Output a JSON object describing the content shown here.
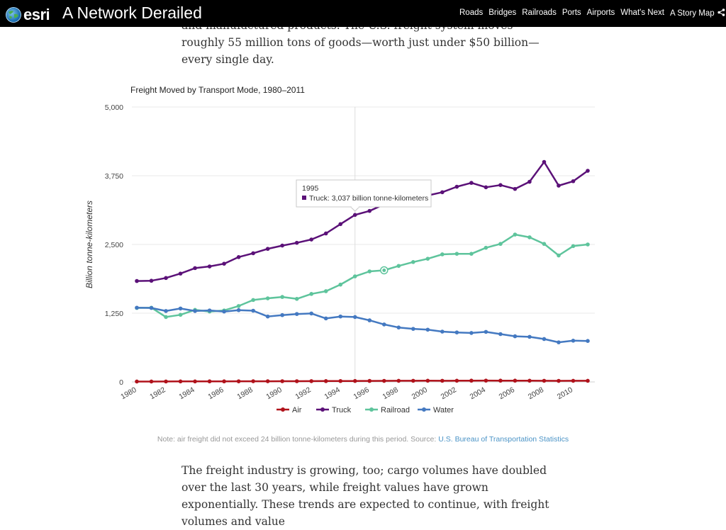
{
  "header": {
    "logo_text": "esri",
    "title": "A Network Derailed",
    "nav_items": [
      "Roads",
      "Bridges",
      "Railroads",
      "Ports",
      "Airports",
      "What's Next"
    ],
    "story_map_label": "A Story Map"
  },
  "intro_text": "and manufactured products. The U.S. freight system moves roughly 55 million tons of goods—worth just under $50 billion—every single day.",
  "outro_text": "The freight industry is growing, too; cargo volumes have doubled over the last 30 years, while freight values have grown exponentially. These trends are expected to continue, with freight volumes and value",
  "note": {
    "text": "Note: air freight did not exceed 24 billion tonne-kilometers during this period. Source: ",
    "link_text": "U.S. Bureau of Transportation Statistics"
  },
  "chart_data": {
    "type": "line",
    "title": "Freight Moved by Transport Mode, 1980–2011",
    "xlabel": "",
    "ylabel": "Billion tonne-kilometers",
    "ylim": [
      0,
      5000
    ],
    "yticks": [
      "0",
      "1,250",
      "2,500",
      "3,750",
      "5,000"
    ],
    "xticks": [
      1980,
      1982,
      1984,
      1986,
      1988,
      1990,
      1992,
      1994,
      1996,
      1998,
      2000,
      2002,
      2004,
      2006,
      2008,
      2010
    ],
    "x": [
      1980,
      1981,
      1982,
      1983,
      1984,
      1985,
      1986,
      1987,
      1988,
      1989,
      1990,
      1991,
      1992,
      1993,
      1994,
      1995,
      1996,
      1997,
      1998,
      1999,
      2000,
      2001,
      2002,
      2003,
      2004,
      2005,
      2006,
      2007,
      2008,
      2009,
      2010,
      2011
    ],
    "series": [
      {
        "name": "Air",
        "color": "#b0121b",
        "values": [
          7,
          7,
          8,
          9,
          9,
          10,
          10,
          11,
          12,
          12,
          13,
          13,
          14,
          15,
          16,
          17,
          18,
          19,
          20,
          21,
          22,
          21,
          22,
          23,
          24,
          23,
          23,
          22,
          21,
          19,
          20,
          20
        ]
      },
      {
        "name": "Truck",
        "color": "#5b1178",
        "values": [
          1835,
          1840,
          1890,
          1970,
          2070,
          2100,
          2150,
          2270,
          2340,
          2420,
          2480,
          2530,
          2590,
          2700,
          2870,
          3037,
          3110,
          3230,
          3300,
          3350,
          3390,
          3450,
          3550,
          3620,
          3540,
          3580,
          3510,
          3640,
          4000,
          3570,
          3650,
          3840
        ]
      },
      {
        "name": "Railroad",
        "color": "#5ec49c",
        "values": [
          1345,
          1350,
          1180,
          1220,
          1310,
          1280,
          1300,
          1380,
          1490,
          1520,
          1545,
          1510,
          1600,
          1650,
          1770,
          1920,
          2010,
          2030,
          2110,
          2180,
          2240,
          2320,
          2330,
          2330,
          2440,
          2510,
          2680,
          2630,
          2510,
          2300,
          2470,
          2500
        ]
      },
      {
        "name": "Water",
        "color": "#4479c1",
        "values": [
          1350,
          1345,
          1290,
          1335,
          1290,
          1300,
          1280,
          1305,
          1295,
          1190,
          1215,
          1235,
          1245,
          1155,
          1190,
          1180,
          1120,
          1045,
          990,
          965,
          950,
          915,
          900,
          890,
          910,
          870,
          830,
          820,
          780,
          720,
          750,
          745
        ]
      }
    ],
    "grid": true,
    "legend": "bottom",
    "tooltip": {
      "year": "1995",
      "text": "Truck: 3,037 billion tonne-kilometers"
    },
    "hover_x": 1995,
    "highlight_point": {
      "series": "Railroad",
      "year": 1997
    }
  }
}
